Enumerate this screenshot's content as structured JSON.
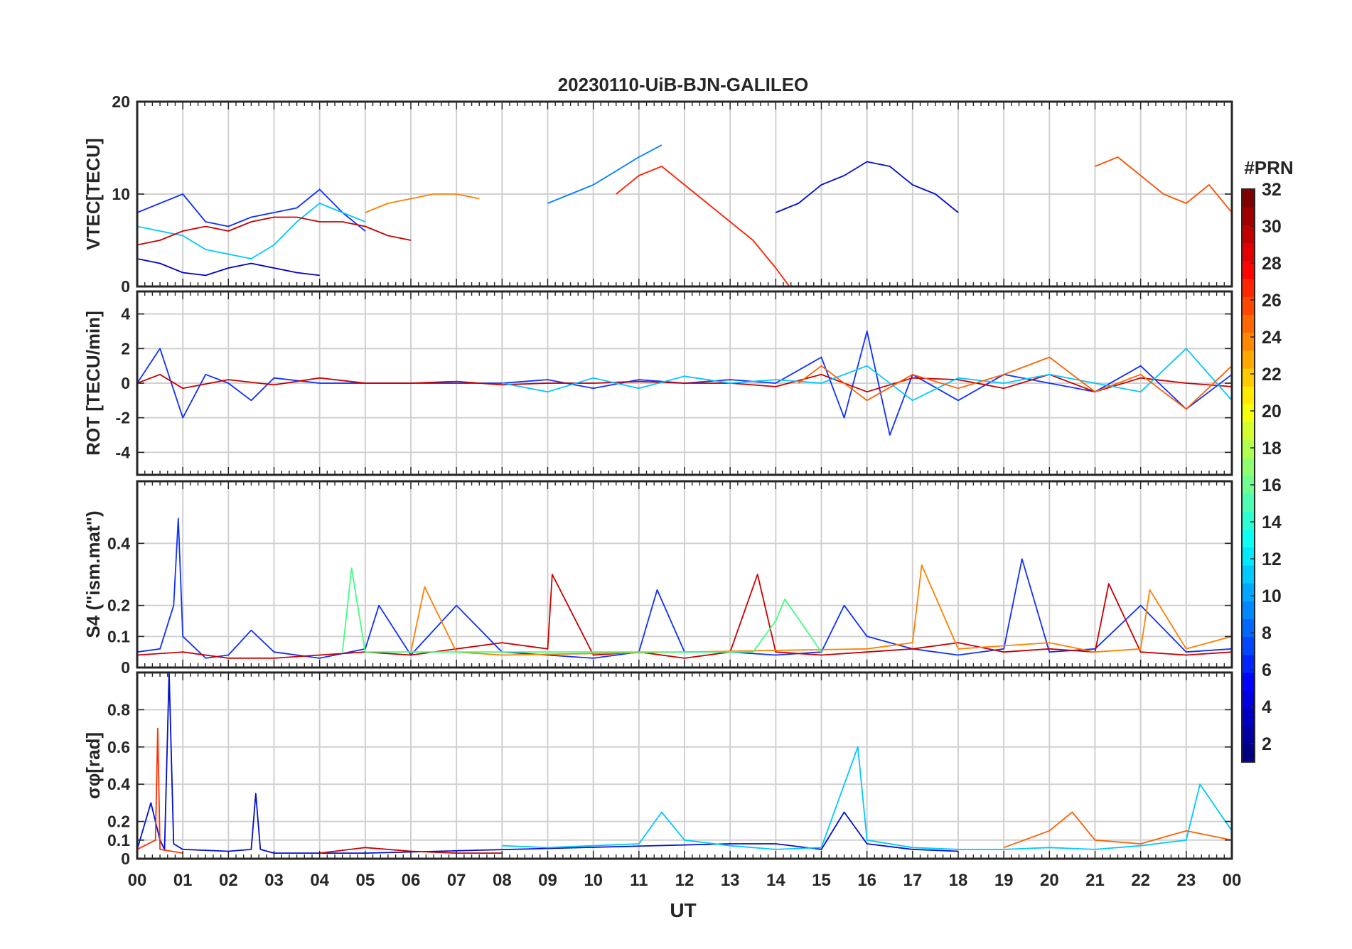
{
  "chart_data": {
    "type": "line",
    "title": "20230110-UiB-BJN-GALILEO",
    "xlabel": "UT",
    "x_tick_labels": [
      "00",
      "01",
      "02",
      "03",
      "04",
      "05",
      "06",
      "07",
      "08",
      "09",
      "10",
      "11",
      "12",
      "13",
      "14",
      "15",
      "16",
      "17",
      "18",
      "19",
      "20",
      "21",
      "22",
      "23",
      "00"
    ],
    "xlim": [
      0,
      24
    ],
    "grid": true,
    "colorbar": {
      "label": "#PRN",
      "range": [
        1,
        32
      ],
      "tick_labels": [
        "2",
        "4",
        "6",
        "8",
        "10",
        "12",
        "14",
        "16",
        "18",
        "20",
        "22",
        "24",
        "26",
        "28",
        "30",
        "32"
      ],
      "colormap": "jet"
    },
    "panels": [
      {
        "ylabel": "VTEC[TECU]",
        "ylim": [
          0,
          20
        ],
        "y_tick_labels": [
          "0",
          "10",
          "20"
        ],
        "y_ticks": [
          0,
          10,
          20
        ],
        "series": [
          {
            "prn": 2,
            "color": "#0000c8",
            "x": [
              0,
              0.5,
              1,
              1.5,
              2,
              2.5,
              3,
              3.5,
              4
            ],
            "y": [
              3,
              2.5,
              1.5,
              1.2,
              2,
              2.5,
              2,
              1.5,
              1.2
            ]
          },
          {
            "prn": 5,
            "color": "#1030ff",
            "x": [
              0,
              0.5,
              1,
              1.5,
              2,
              2.5,
              3,
              3.5,
              4,
              4.5,
              5
            ],
            "y": [
              8,
              9,
              10,
              7,
              6.5,
              7.5,
              8,
              8.5,
              10.5,
              8,
              6
            ]
          },
          {
            "prn": 9,
            "color": "#0080ff",
            "x": [
              9,
              9.5,
              10,
              10.5,
              11,
              11.5
            ],
            "y": [
              9,
              10,
              11,
              12.5,
              14,
              15.3
            ]
          },
          {
            "prn": 12,
            "color": "#00c8ff",
            "x": [
              0,
              0.5,
              1,
              1.5,
              2,
              2.5,
              3,
              3.5,
              4,
              4.5,
              5
            ],
            "y": [
              6.5,
              6,
              5.5,
              4,
              3.5,
              3,
              4.5,
              7,
              9,
              8,
              7
            ]
          },
          {
            "prn": 24,
            "color": "#ff8000",
            "x": [
              5,
              5.5,
              6,
              6.5,
              7,
              7.5
            ],
            "y": [
              8,
              9,
              9.5,
              10,
              10,
              9.5
            ]
          },
          {
            "prn": 30,
            "color": "#c80000",
            "x": [
              0,
              0.5,
              1,
              1.5,
              2,
              2.5,
              3,
              3.5,
              4,
              4.5,
              5,
              5.5,
              6
            ],
            "y": [
              4.5,
              5,
              6,
              6.5,
              6,
              7,
              7.5,
              7.5,
              7,
              7,
              6.5,
              5.5,
              5
            ]
          },
          {
            "prn": 27,
            "color": "#ff2000",
            "x": [
              10.5,
              11,
              11.5,
              12,
              12.5,
              13,
              13.5,
              14,
              14.3
            ],
            "y": [
              10,
              12,
              13,
              11,
              9,
              7,
              5,
              2,
              0
            ]
          },
          {
            "prn": 3,
            "color": "#0010d0",
            "x": [
              14,
              14.5,
              15,
              15.5,
              16,
              16.5,
              17,
              17.5,
              18
            ],
            "y": [
              8,
              9,
              11,
              12,
              13.5,
              13,
              11,
              10,
              8
            ]
          },
          {
            "prn": 26,
            "color": "#ff5000",
            "x": [
              21,
              21.5,
              22,
              22.5,
              23,
              23.5,
              24
            ],
            "y": [
              13,
              14,
              12,
              10,
              9,
              11,
              8
            ]
          }
        ]
      },
      {
        "ylabel": "ROT [TECU/min]",
        "ylim": [
          -5.3,
          5.3
        ],
        "y_tick_labels": [
          "-4",
          "-2",
          "0",
          "2",
          "4"
        ],
        "y_ticks": [
          -4,
          -2,
          0,
          2,
          4
        ],
        "series": [
          {
            "prn": 5,
            "color": "#1030ff",
            "x": [
              0,
              0.5,
              1,
              1.5,
              2,
              2.5,
              3,
              4,
              5,
              6,
              7,
              8,
              9,
              10,
              11,
              12,
              13,
              14,
              15,
              15.5,
              16,
              16.5,
              17,
              18,
              19,
              20,
              21,
              22,
              23,
              24
            ],
            "y": [
              0,
              2,
              -2,
              0.5,
              0,
              -1,
              0.3,
              0,
              0,
              0,
              0,
              0,
              0.2,
              -0.3,
              0.2,
              0,
              0.2,
              0,
              1.5,
              -2,
              3,
              -3,
              0.5,
              -1,
              0.5,
              0,
              -0.5,
              1,
              -1.5,
              0.5
            ]
          },
          {
            "prn": 30,
            "color": "#c80000",
            "x": [
              0,
              0.5,
              1,
              2,
              3,
              4,
              5,
              6,
              7,
              8,
              9,
              10,
              11,
              12,
              13,
              14,
              15,
              16,
              17,
              18,
              19,
              20,
              21,
              22,
              23,
              24
            ],
            "y": [
              0,
              0.5,
              -0.3,
              0.2,
              -0.1,
              0.3,
              0,
              0,
              0.1,
              -0.1,
              0,
              0,
              0.1,
              0,
              0,
              -0.2,
              0.5,
              -0.5,
              0.3,
              0.2,
              -0.3,
              0.5,
              -0.5,
              0.3,
              0,
              -0.2
            ]
          },
          {
            "prn": 12,
            "color": "#00c8ff",
            "x": [
              8,
              9,
              10,
              11,
              12,
              13,
              14,
              15,
              16,
              17,
              18,
              19,
              20,
              21,
              22,
              23,
              24
            ],
            "y": [
              0,
              -0.5,
              0.3,
              -0.3,
              0.4,
              0,
              0.2,
              0,
              1,
              -1,
              0.3,
              0,
              0.5,
              0,
              -0.5,
              2,
              -1
            ]
          },
          {
            "prn": 25,
            "color": "#ff6000",
            "x": [
              14.5,
              15,
              16,
              17,
              18,
              19,
              20,
              21,
              22,
              23,
              24
            ],
            "y": [
              0,
              1,
              -1,
              0.5,
              -0.3,
              0.5,
              1.5,
              -0.5,
              0.5,
              -1.5,
              1
            ]
          }
        ]
      },
      {
        "ylabel": "S4 (\"ism.mat\")",
        "ylim": [
          0,
          0.6
        ],
        "y_tick_labels": [
          "0",
          "0.1",
          "0.2",
          "0.4"
        ],
        "y_ticks": [
          0,
          0.1,
          0.2,
          0.4
        ],
        "series": [
          {
            "prn": 5,
            "color": "#1030ff",
            "x": [
              0,
              0.5,
              0.8,
              0.9,
              1,
              1.5,
              2,
              2.5,
              3,
              4,
              5,
              5.3,
              6,
              7,
              8,
              9,
              10,
              11,
              11.4,
              12,
              13,
              14,
              15,
              15.5,
              16,
              17,
              18,
              19,
              19.4,
              20,
              21,
              22,
              23,
              24
            ],
            "y": [
              0.05,
              0.06,
              0.2,
              0.48,
              0.1,
              0.03,
              0.04,
              0.12,
              0.05,
              0.03,
              0.06,
              0.2,
              0.04,
              0.2,
              0.05,
              0.04,
              0.03,
              0.05,
              0.25,
              0.05,
              0.05,
              0.04,
              0.05,
              0.2,
              0.1,
              0.06,
              0.04,
              0.06,
              0.35,
              0.05,
              0.06,
              0.2,
              0.05,
              0.06
            ]
          },
          {
            "prn": 30,
            "color": "#c80000",
            "x": [
              0,
              1,
              2,
              3,
              4,
              5,
              6,
              7,
              8,
              9,
              9.1,
              10,
              11,
              12,
              13,
              13.6,
              14,
              15,
              16,
              17,
              18,
              19,
              20,
              21,
              21.3,
              22,
              23,
              24
            ],
            "y": [
              0.04,
              0.05,
              0.03,
              0.03,
              0.04,
              0.05,
              0.04,
              0.06,
              0.08,
              0.06,
              0.3,
              0.04,
              0.05,
              0.03,
              0.05,
              0.3,
              0.05,
              0.04,
              0.05,
              0.06,
              0.08,
              0.05,
              0.06,
              0.05,
              0.27,
              0.05,
              0.04,
              0.05
            ]
          },
          {
            "prn": 24,
            "color": "#ff8000",
            "x": [
              6,
              6.3,
              7,
              8,
              16,
              17,
              17.2,
              18,
              20,
              21,
              22,
              22.2,
              23,
              24
            ],
            "y": [
              0.05,
              0.26,
              0.05,
              0.04,
              0.06,
              0.08,
              0.33,
              0.06,
              0.08,
              0.05,
              0.06,
              0.25,
              0.06,
              0.1
            ]
          },
          {
            "prn": 18,
            "color": "#40ff80",
            "x": [
              4.5,
              4.7,
              5,
              13.5,
              14,
              14.2,
              15
            ],
            "y": [
              0.05,
              0.32,
              0.05,
              0.05,
              0.15,
              0.22,
              0.05
            ]
          }
        ]
      },
      {
        "ylabel": "σφ[rad]",
        "ylim": [
          0,
          1
        ],
        "y_tick_labels": [
          "0",
          "0.1",
          "0.2",
          "0.4",
          "0.6",
          "0.8"
        ],
        "y_ticks": [
          0,
          0.1,
          0.2,
          0.4,
          0.6,
          0.8
        ],
        "series": [
          {
            "prn": 3,
            "color": "#0010d0",
            "x": [
              0,
              0.3,
              0.5,
              0.6,
              0.7,
              0.8,
              1,
              2,
              2.5,
              2.6,
              2.7,
              3,
              4,
              5,
              13,
              14,
              15,
              15.5,
              16,
              17,
              18
            ],
            "y": [
              0.05,
              0.3,
              0.1,
              0.05,
              1,
              0.08,
              0.05,
              0.04,
              0.05,
              0.35,
              0.05,
              0.03,
              0.03,
              0.03,
              0.08,
              0.08,
              0.05,
              0.25,
              0.08,
              0.05,
              0.04
            ]
          },
          {
            "prn": 27,
            "color": "#ff3000",
            "x": [
              0,
              0.4,
              0.45,
              0.5,
              1
            ],
            "y": [
              0.05,
              0.1,
              0.7,
              0.05,
              0.03
            ]
          },
          {
            "prn": 12,
            "color": "#00c8ff",
            "x": [
              8,
              9,
              10,
              11,
              11.5,
              12,
              13,
              14,
              15,
              15.8,
              16,
              17,
              18,
              19,
              20,
              21,
              22,
              23,
              23.3,
              24
            ],
            "y": [
              0.07,
              0.06,
              0.07,
              0.08,
              0.25,
              0.1,
              0.07,
              0.05,
              0.06,
              0.6,
              0.1,
              0.06,
              0.05,
              0.05,
              0.06,
              0.05,
              0.07,
              0.1,
              0.4,
              0.15
            ]
          },
          {
            "prn": 30,
            "color": "#c80000",
            "x": [
              4,
              5,
              6,
              7,
              8
            ],
            "y": [
              0.03,
              0.06,
              0.04,
              0.03,
              0.03
            ]
          },
          {
            "prn": 25,
            "color": "#ff6000",
            "x": [
              19,
              20,
              20.5,
              21,
              22,
              23,
              24
            ],
            "y": [
              0.06,
              0.15,
              0.25,
              0.1,
              0.08,
              0.15,
              0.1
            ]
          }
        ]
      }
    ]
  }
}
